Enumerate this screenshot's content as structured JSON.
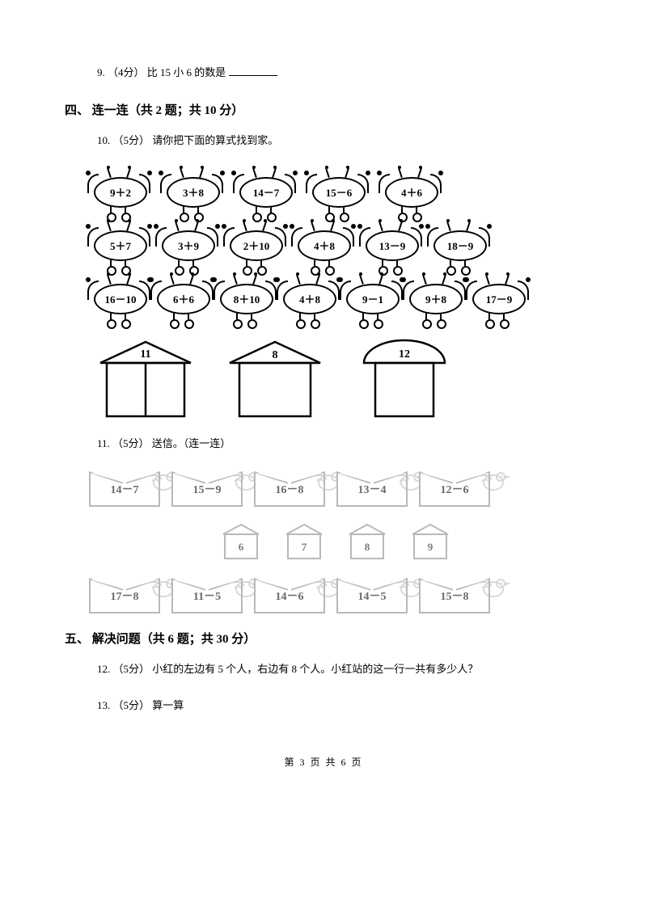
{
  "q9": {
    "num": "9.",
    "pts": "（4分）",
    "text_a": " 比 15 小 6 的数是"
  },
  "section4": {
    "num": "四、",
    "title": "连一连（共 2 题；共 10 分）"
  },
  "q10": {
    "num": "10.",
    "pts": "（5分）",
    "text": " 请你把下面的算式找到家。",
    "rows": [
      [
        "9＋2",
        "3＋8",
        "14－7",
        "15－6",
        "4＋6"
      ],
      [
        "5＋7",
        "3＋9",
        "2＋10",
        "4＋8",
        "13－9",
        "18－9"
      ],
      [
        "16－10",
        "6＋6",
        "8＋10",
        "4＋8",
        "9－1",
        "9＋8",
        "17－9"
      ]
    ],
    "houses": [
      "11",
      "8",
      "12"
    ]
  },
  "q11": {
    "num": "11.",
    "pts": "（5分）",
    "text": " 送信。（连一连）",
    "top": [
      "14－7",
      "15－9",
      "16－8",
      "13－4",
      "12－6"
    ],
    "boxes": [
      "6",
      "7",
      "8",
      "9"
    ],
    "bottom": [
      "17－8",
      "11－5",
      "14－6",
      "14－5",
      "15－8"
    ]
  },
  "section5": {
    "num": "五、",
    "title": "解决问题（共 6 题；共 30 分）"
  },
  "q12": {
    "num": "12.",
    "pts": "（5分）",
    "text": " 小红的左边有 5 个人，右边有 8 个人。小红站的这一行一共有多少人？"
  },
  "q13": {
    "num": "13.",
    "pts": "（5分）",
    "text": " 算一算"
  },
  "footer": "第 3 页 共 6 页"
}
